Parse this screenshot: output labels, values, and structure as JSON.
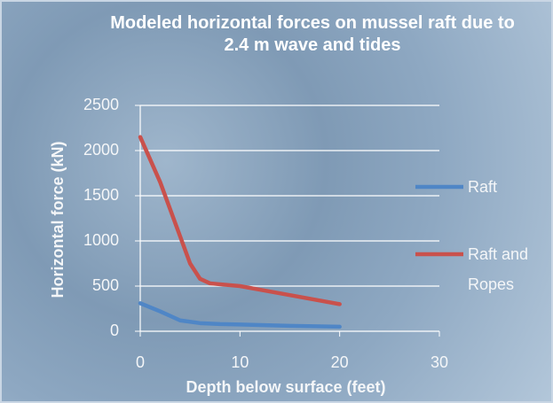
{
  "chart_data": {
    "type": "line",
    "title": "Modeled horizontal forces on mussel raft due to 2.4 m wave and tides",
    "x_label": "Depth below surface (feet)",
    "y_label": "Horizontal force (kN)",
    "xlim": [
      0,
      30
    ],
    "xticks": [
      0,
      10,
      20,
      30
    ],
    "ylim": [
      0,
      2500
    ],
    "yticks": [
      0,
      500,
      1000,
      1500,
      2000,
      2500
    ],
    "grid": true,
    "legend": "right",
    "series": [
      {
        "name": "Raft",
        "color": "#4f86c6",
        "x": [
          0,
          2,
          4,
          6,
          8,
          10,
          15,
          20
        ],
        "values": [
          310,
          220,
          120,
          90,
          80,
          75,
          60,
          50
        ]
      },
      {
        "name": "Raft and Ropes",
        "color": "#c9514c",
        "x": [
          0,
          2,
          4,
          5,
          6,
          7,
          10,
          12,
          15,
          18,
          20
        ],
        "values": [
          2150,
          1650,
          1050,
          750,
          580,
          530,
          500,
          460,
          400,
          340,
          300
        ]
      }
    ]
  }
}
